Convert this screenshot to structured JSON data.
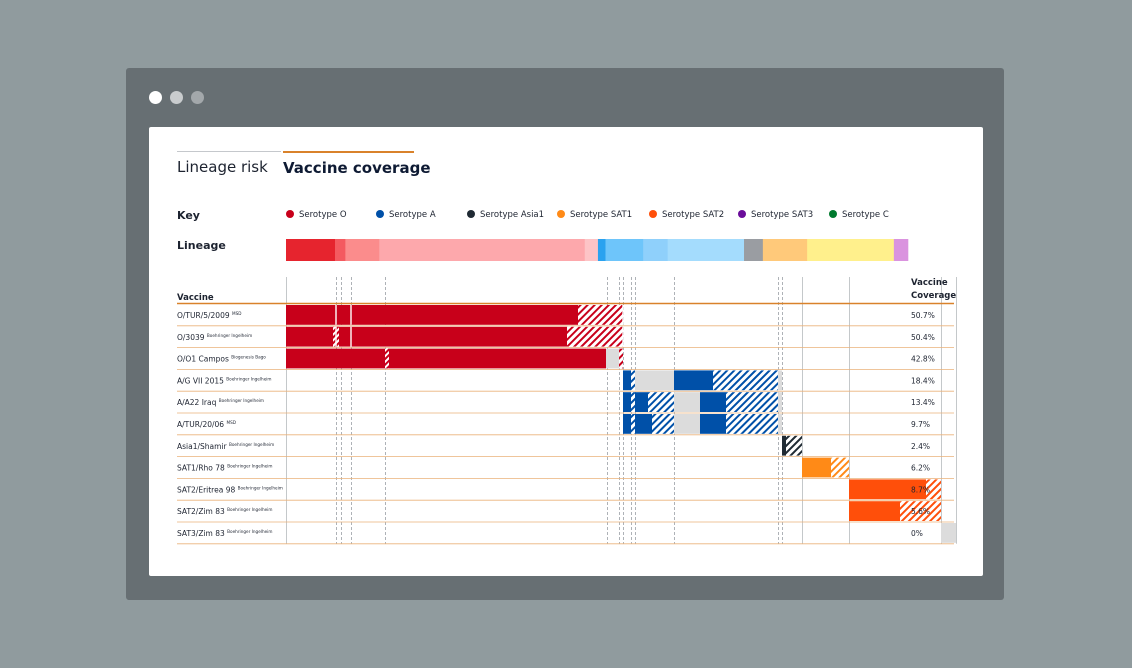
{
  "tabs": [
    {
      "label": "Lineage risk",
      "active": false
    },
    {
      "label": "Vaccine coverage",
      "active": true
    }
  ],
  "key": {
    "label": "Key",
    "items": [
      {
        "label": "Serotype O",
        "color": "#c8001a"
      },
      {
        "label": "Serotype A",
        "color": "#0050a8"
      },
      {
        "label": "Serotype Asia1",
        "color": "#1f2a33"
      },
      {
        "label": "Serotype SAT1",
        "color": "#ff8a17"
      },
      {
        "label": "Serotype SAT2",
        "color": "#ff4f0a"
      },
      {
        "label": "Serotype SAT3",
        "color": "#6a0d9a"
      },
      {
        "label": "Serotype C",
        "color": "#007a2e"
      }
    ]
  },
  "lineage_label": "Lineage",
  "chart_data": {
    "type": "table",
    "column_headers": {
      "vaccine": "Vaccine",
      "coverage": "Vaccine Coverage"
    },
    "lineage_segments": [
      {
        "color": "#e6242e",
        "weight": 52
      },
      {
        "color": "#f45a60",
        "weight": 11
      },
      {
        "color": "#fb8c8c",
        "weight": 36
      },
      {
        "color": "#fda8ac",
        "weight": 218
      },
      {
        "color": "#fdc4c6",
        "weight": 14
      },
      {
        "color": "#2aa2ef",
        "weight": 8
      },
      {
        "color": "#6ec5fa",
        "weight": 40
      },
      {
        "color": "#8fd0fb",
        "weight": 26
      },
      {
        "color": "#a4dcfd",
        "weight": 81
      },
      {
        "color": "#9a9da2",
        "weight": 20
      },
      {
        "color": "#ffc97a",
        "weight": 47
      },
      {
        "color": "#fff08c",
        "weight": 92
      },
      {
        "color": "#da93df",
        "weight": 15
      }
    ],
    "rows": [
      {
        "vaccine": "O/TUR/5/2009",
        "producer": "MSD",
        "coverage": "50.7%",
        "serotype": "O",
        "bars": [
          [
            0,
            292,
            "solid"
          ],
          [
            292,
            337,
            "hatch"
          ]
        ],
        "marks": [
          50,
          65,
          337
        ]
      },
      {
        "vaccine": "O/3039",
        "producer": "Boehringer Ingelheim",
        "coverage": "50.4%",
        "serotype": "O",
        "bars": [
          [
            0,
            281,
            "solid"
          ],
          [
            281,
            337,
            "hatch"
          ]
        ],
        "marks": [
          50,
          65,
          337
        ],
        "white_hatch": [
          47,
          53
        ]
      },
      {
        "vaccine": "O/O1 Campos",
        "producer": "Biogenesis Bago",
        "coverage": "42.8%",
        "serotype": "O",
        "bars": [
          [
            0,
            320,
            "solid"
          ],
          [
            333,
            337,
            "hatch"
          ]
        ],
        "grey": [
          [
            55,
            65
          ],
          [
            320,
            333
          ]
        ],
        "white_hatch": [
          99,
          103
        ]
      },
      {
        "vaccine": "A/G VII 2015",
        "producer": "Boehringer Ingelheim",
        "coverage": "18.4%",
        "serotype": "A",
        "bars": [
          [
            337,
            345,
            "solid"
          ],
          [
            345,
            349,
            "hatch"
          ],
          [
            388,
            427,
            "solid"
          ],
          [
            427,
            492,
            "hatch"
          ]
        ],
        "grey": [
          [
            349,
            388
          ],
          [
            492,
            496
          ]
        ]
      },
      {
        "vaccine": "A/A22 Iraq",
        "producer": "Boehringer Ingelheim",
        "coverage": "13.4%",
        "serotype": "A",
        "bars": [
          [
            337,
            345,
            "solid"
          ],
          [
            345,
            349,
            "hatch"
          ],
          [
            349,
            362,
            "solid"
          ],
          [
            362,
            388,
            "hatch"
          ],
          [
            414,
            440,
            "solid"
          ],
          [
            440,
            492,
            "hatch"
          ]
        ],
        "grey": [
          [
            388,
            414
          ],
          [
            492,
            496
          ]
        ]
      },
      {
        "vaccine": "A/TUR/20/06",
        "producer": "MSD",
        "coverage": "9.7%",
        "serotype": "A",
        "bars": [
          [
            337,
            345,
            "solid"
          ],
          [
            345,
            349,
            "hatch"
          ],
          [
            349,
            366,
            "solid"
          ],
          [
            366,
            388,
            "hatch"
          ],
          [
            414,
            440,
            "solid"
          ],
          [
            440,
            492,
            "hatch"
          ]
        ],
        "grey": [
          [
            388,
            414
          ],
          [
            492,
            496
          ]
        ]
      },
      {
        "vaccine": "Asia1/Shamir",
        "producer": "Boehringer Ingelheim",
        "coverage": "2.4%",
        "serotype": "Asia1",
        "bars": [
          [
            496,
            500,
            "solid"
          ],
          [
            500,
            516,
            "hatch"
          ]
        ]
      },
      {
        "vaccine": "SAT1/Rho 78",
        "producer": "Boehringer Ingelheim",
        "coverage": "6.2%",
        "serotype": "SAT1",
        "bars": [
          [
            516,
            545,
            "solid"
          ],
          [
            545,
            563,
            "hatch"
          ]
        ]
      },
      {
        "vaccine": "SAT2/Eritrea 98",
        "producer": "Boehringer Ingelheim",
        "coverage": "8.7%",
        "serotype": "SAT2",
        "bars": [
          [
            563,
            640,
            "solid"
          ],
          [
            640,
            655,
            "hatch"
          ]
        ]
      },
      {
        "vaccine": "SAT2/Zim 83",
        "producer": "Boehringer Ingelheim",
        "coverage": "5.6%",
        "serotype": "SAT2",
        "bars": [
          [
            563,
            614,
            "solid"
          ],
          [
            614,
            655,
            "hatch"
          ]
        ]
      },
      {
        "vaccine": "SAT3/Zim 83",
        "producer": "Boehringer Ingelheim",
        "coverage": "0%",
        "serotype": "SAT3",
        "bars": [],
        "grey": [
          [
            655,
            670
          ]
        ]
      }
    ],
    "serotype_colors": {
      "O": "#c8001a",
      "A": "#0050a8",
      "Asia1": "#1f2a33",
      "SAT1": "#ff8a17",
      "SAT2": "#ff4f0a",
      "SAT3": "#6a0d9a"
    },
    "dashed_columns": [
      50,
      55,
      65,
      99,
      321,
      333,
      337,
      345,
      349,
      388,
      492,
      496
    ],
    "solid_columns": [
      0,
      516,
      563,
      655,
      670
    ]
  }
}
